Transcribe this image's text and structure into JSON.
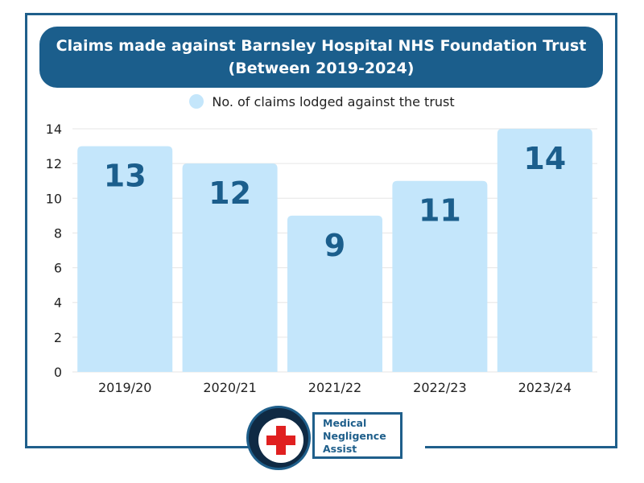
{
  "chart_data": {
    "type": "bar",
    "title": "Claims made against Barnsley Hospital NHS Foundation Trust",
    "subtitle": "(Between 2019-2024)",
    "categories": [
      "2019/20",
      "2020/21",
      "2021/22",
      "2022/23",
      "2023/24"
    ],
    "series": [
      {
        "name": "No. of claims lodged against the trust",
        "values": [
          13,
          12,
          9,
          11,
          14
        ]
      }
    ],
    "data_labels": [
      "13",
      "12",
      "9",
      "11",
      "14"
    ],
    "ylim": [
      0,
      14
    ],
    "yticks": [
      "0",
      "2",
      "4",
      "6",
      "8",
      "10",
      "12",
      "14"
    ],
    "grid": true,
    "legend_position": "top-center",
    "colors": {
      "bar": "#c4e6fb",
      "label": "#1b5e8c",
      "title_bg": "#1b5e8c",
      "frame": "#1f5f8b",
      "grid": "#e6e6e6"
    }
  },
  "logo": {
    "line1": "Medical",
    "line2": "Negligence",
    "line3": "Assist",
    "icon": "medical-cross-icon"
  }
}
